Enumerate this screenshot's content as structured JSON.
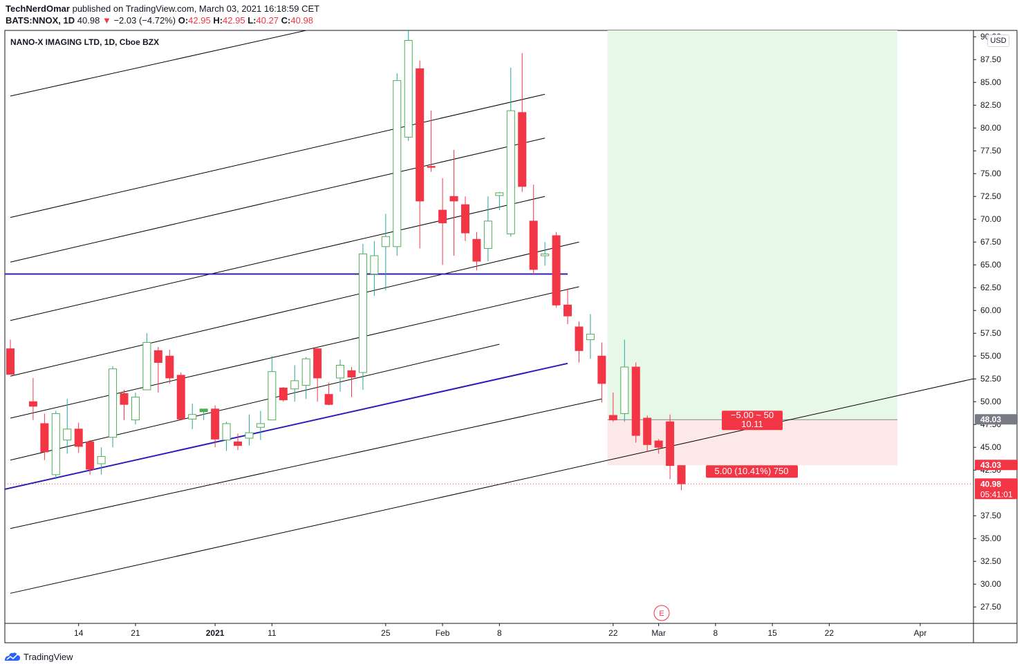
{
  "header": {
    "publisher": "TechNerdOmar",
    "published_text": "published on TradingView.com, March 03, 2021 16:18:59 CET",
    "symbol_line": "BATS:NNOX, 1D",
    "last": "40.98",
    "change_arrow": "▼",
    "change": "−2.03 (−4.72%)",
    "o_label": "O:",
    "o": "42.95",
    "h_label": "H:",
    "h": "42.95",
    "l_label": "L:",
    "l": "40.27",
    "c_label": "C:",
    "c": "40.98"
  },
  "legend_title": "NANO-X IMAGING LTD, 1D, Cboe BZX",
  "currency": "USD",
  "footer": {
    "brand": "TradingView"
  },
  "colors": {
    "up": "#26a69a",
    "up_fill": "#4caf50",
    "down": "#f23645",
    "channel": "#000000",
    "blue": "#2b1cb8",
    "profit_zone": "#e8f8e8",
    "loss_zone": "#fde8e8"
  },
  "chart_data": {
    "type": "candlestick",
    "title": "NANO-X IMAGING LTD, 1D, Cboe BZX",
    "ylim": [
      25.7,
      90.7
    ],
    "y_ticks": [
      "90.00",
      "87.50",
      "85.00",
      "82.50",
      "80.00",
      "77.50",
      "75.00",
      "72.50",
      "70.00",
      "67.50",
      "65.00",
      "62.50",
      "60.00",
      "57.50",
      "55.00",
      "52.50",
      "50.00",
      "47.50",
      "45.00",
      "42.50",
      "37.50",
      "35.00",
      "32.50",
      "30.00",
      "27.50"
    ],
    "x_ticks": [
      {
        "label": "14",
        "day": 6
      },
      {
        "label": "21",
        "day": 11
      },
      {
        "label": "2021",
        "day": 18
      },
      {
        "label": "11",
        "day": 23
      },
      {
        "label": "25",
        "day": 33
      },
      {
        "label": "Feb",
        "day": 38
      },
      {
        "label": "8",
        "day": 43
      },
      {
        "label": "22",
        "day": 53
      },
      {
        "label": "Mar",
        "day": 57
      },
      {
        "label": "8",
        "day": 62
      },
      {
        "label": "15",
        "day": 67
      },
      {
        "label": "22",
        "day": 72
      },
      {
        "label": "Apr",
        "day": 80
      }
    ],
    "candles": [
      {
        "d": 0,
        "o": 55.8,
        "h": 56.8,
        "l": 53.0,
        "c": 53.0
      },
      {
        "d": 2,
        "o": 50.0,
        "h": 52.6,
        "l": 48.0,
        "c": 49.5
      },
      {
        "d": 3,
        "o": 47.6,
        "h": 48.7,
        "l": 43.6,
        "c": 44.5
      },
      {
        "d": 4,
        "o": 42.0,
        "h": 49.0,
        "l": 41.5,
        "c": 48.7
      },
      {
        "d": 5,
        "o": 45.8,
        "h": 50.3,
        "l": 44.3,
        "c": 47.0
      },
      {
        "d": 6,
        "o": 47.0,
        "h": 47.7,
        "l": 44.4,
        "c": 45.1
      },
      {
        "d": 7,
        "o": 45.6,
        "h": 45.8,
        "l": 42.0,
        "c": 42.6
      },
      {
        "d": 8,
        "o": 43.2,
        "h": 45.0,
        "l": 42.0,
        "c": 44.0
      },
      {
        "d": 9,
        "o": 46.1,
        "h": 53.9,
        "l": 45.0,
        "c": 53.6
      },
      {
        "d": 10,
        "o": 50.9,
        "h": 51.3,
        "l": 48.0,
        "c": 49.7
      },
      {
        "d": 11,
        "o": 48.0,
        "h": 51.0,
        "l": 47.5,
        "c": 50.5
      },
      {
        "d": 12,
        "o": 51.3,
        "h": 57.5,
        "l": 51.3,
        "c": 56.5
      },
      {
        "d": 13,
        "o": 55.6,
        "h": 56.0,
        "l": 51.0,
        "c": 54.3
      },
      {
        "d": 14,
        "o": 55.0,
        "h": 55.7,
        "l": 52.0,
        "c": 52.6
      },
      {
        "d": 15,
        "o": 52.9,
        "h": 53.2,
        "l": 48.0,
        "c": 48.1
      },
      {
        "d": 16,
        "o": 48.1,
        "h": 49.8,
        "l": 47.0,
        "c": 48.6
      },
      {
        "d": 17,
        "o": 48.9,
        "h": 49.2,
        "l": 48.0,
        "c": 49.2
      },
      {
        "d": 18,
        "o": 49.2,
        "h": 49.6,
        "l": 45.0,
        "c": 45.9
      },
      {
        "d": 19,
        "o": 45.8,
        "h": 47.8,
        "l": 44.6,
        "c": 47.6
      },
      {
        "d": 20,
        "o": 45.6,
        "h": 46.5,
        "l": 44.7,
        "c": 45.2
      },
      {
        "d": 21,
        "o": 46.0,
        "h": 48.6,
        "l": 45.2,
        "c": 46.6
      },
      {
        "d": 22,
        "o": 47.2,
        "h": 49.0,
        "l": 45.8,
        "c": 47.6
      },
      {
        "d": 23,
        "o": 48.0,
        "h": 55.0,
        "l": 48.0,
        "c": 53.3
      },
      {
        "d": 24,
        "o": 51.5,
        "h": 51.6,
        "l": 50.0,
        "c": 50.2
      },
      {
        "d": 25,
        "o": 51.4,
        "h": 54.0,
        "l": 50.0,
        "c": 52.3
      },
      {
        "d": 26,
        "o": 51.8,
        "h": 54.9,
        "l": 50.3,
        "c": 54.7
      },
      {
        "d": 27,
        "o": 55.8,
        "h": 56.0,
        "l": 50.0,
        "c": 52.6
      },
      {
        "d": 28,
        "o": 50.8,
        "h": 52.1,
        "l": 49.6,
        "c": 49.7
      },
      {
        "d": 29,
        "o": 52.6,
        "h": 54.6,
        "l": 51.1,
        "c": 54.0
      },
      {
        "d": 30,
        "o": 53.4,
        "h": 53.8,
        "l": 50.5,
        "c": 52.7
      },
      {
        "d": 31,
        "o": 53.2,
        "h": 67.3,
        "l": 51.3,
        "c": 66.2
      },
      {
        "d": 32,
        "o": 64.0,
        "h": 67.6,
        "l": 61.6,
        "c": 66.0
      },
      {
        "d": 33,
        "o": 67.0,
        "h": 70.6,
        "l": 62.2,
        "c": 68.1
      },
      {
        "d": 34,
        "o": 67.0,
        "h": 86.0,
        "l": 66.0,
        "c": 85.2
      },
      {
        "d": 35,
        "o": 79.0,
        "h": 90.7,
        "l": 78.6,
        "c": 89.6
      },
      {
        "d": 36,
        "o": 86.5,
        "h": 87.4,
        "l": 66.8,
        "c": 72.0
      },
      {
        "d": 37,
        "o": 75.8,
        "h": 81.9,
        "l": 75.2,
        "c": 75.7
      },
      {
        "d": 38,
        "o": 71.0,
        "h": 74.5,
        "l": 65.0,
        "c": 69.6
      },
      {
        "d": 39,
        "o": 72.5,
        "h": 77.6,
        "l": 66.0,
        "c": 72.0
      },
      {
        "d": 40,
        "o": 71.6,
        "h": 72.5,
        "l": 67.6,
        "c": 68.5
      },
      {
        "d": 41,
        "o": 67.8,
        "h": 68.6,
        "l": 64.4,
        "c": 65.4
      },
      {
        "d": 42,
        "o": 66.8,
        "h": 72.5,
        "l": 65.4,
        "c": 69.8
      },
      {
        "d": 43,
        "o": 72.6,
        "h": 73.0,
        "l": 71.0,
        "c": 72.9
      },
      {
        "d": 44,
        "o": 68.4,
        "h": 86.6,
        "l": 68.1,
        "c": 81.9
      },
      {
        "d": 45,
        "o": 81.7,
        "h": 88.2,
        "l": 73.0,
        "c": 73.6
      },
      {
        "d": 46,
        "o": 69.8,
        "h": 73.8,
        "l": 63.9,
        "c": 64.5
      },
      {
        "d": 47,
        "o": 66.0,
        "h": 67.5,
        "l": 64.9,
        "c": 66.2
      },
      {
        "d": 48,
        "o": 68.2,
        "h": 68.6,
        "l": 60.3,
        "c": 60.6
      },
      {
        "d": 49,
        "o": 60.6,
        "h": 62.4,
        "l": 58.5,
        "c": 59.4
      },
      {
        "d": 50,
        "o": 58.2,
        "h": 58.8,
        "l": 54.3,
        "c": 55.6
      },
      {
        "d": 51,
        "o": 56.8,
        "h": 59.6,
        "l": 54.7,
        "c": 57.4
      },
      {
        "d": 52,
        "o": 55.0,
        "h": 56.5,
        "l": 49.9,
        "c": 52.0
      },
      {
        "d": 53,
        "o": 48.5,
        "h": 51.0,
        "l": 47.8,
        "c": 48.0
      },
      {
        "d": 54,
        "o": 48.7,
        "h": 56.8,
        "l": 47.8,
        "c": 53.8
      },
      {
        "d": 55,
        "o": 53.8,
        "h": 54.3,
        "l": 45.5,
        "c": 46.3
      },
      {
        "d": 56,
        "o": 48.2,
        "h": 48.5,
        "l": 44.5,
        "c": 45.3
      },
      {
        "d": 57,
        "o": 45.7,
        "h": 45.9,
        "l": 44.3,
        "c": 45.0
      },
      {
        "d": 58,
        "o": 47.8,
        "h": 48.6,
        "l": 41.5,
        "c": 43.0
      },
      {
        "d": 59,
        "o": 43.0,
        "h": 43.0,
        "l": 40.3,
        "c": 41.0
      }
    ],
    "channel_lines": [
      {
        "d1": 0,
        "p1": 83.5,
        "d2": 26,
        "p2": 90.7
      },
      {
        "d1": 0,
        "p1": 70.2,
        "d2": 47,
        "p2": 83.7
      },
      {
        "d1": 0,
        "p1": 65.3,
        "d2": 47,
        "p2": 78.9
      },
      {
        "d1": 0,
        "p1": 58.9,
        "d2": 47,
        "p2": 72.5
      },
      {
        "d1": 0,
        "p1": 52.8,
        "d2": 50,
        "p2": 67.5
      },
      {
        "d1": 0,
        "p1": 48.2,
        "d2": 50,
        "p2": 62.6
      },
      {
        "d1": 0,
        "p1": 43.6,
        "d2": 43,
        "p2": 56.3
      },
      {
        "d1": 0,
        "p1": 36.1,
        "d2": 52,
        "p2": 50.3
      },
      {
        "d1": 0,
        "p1": 29.0,
        "d2": 85,
        "p2": 52.6
      }
    ],
    "blue_lines": [
      {
        "d1": 0,
        "p1": 40.4,
        "d2": 49,
        "p2": 54.2
      },
      {
        "d1": 0,
        "p1": 64.0,
        "d2": 49,
        "p2": 64.0
      }
    ],
    "position": {
      "entry": 48.03,
      "target": 90.7,
      "stop": 43.03,
      "start_day": 52.5,
      "end_day": 78,
      "profit_label": "−5.00 ~ 50",
      "profit_sub": "10.11",
      "loss_label": "5.00 (10.41%) 750"
    },
    "last_price": 40.98,
    "price_tags": [
      {
        "value": 48.03,
        "label": "48.03",
        "color": "#787b86"
      },
      {
        "value": 43.03,
        "label": "43.03",
        "color": "#f23645"
      },
      {
        "value": 40.98,
        "label": "40.98",
        "color": "#f23645",
        "sub": "05:41:01"
      }
    ],
    "earnings_marker": {
      "day": 57.5,
      "price": 26.4,
      "label": "E"
    }
  }
}
